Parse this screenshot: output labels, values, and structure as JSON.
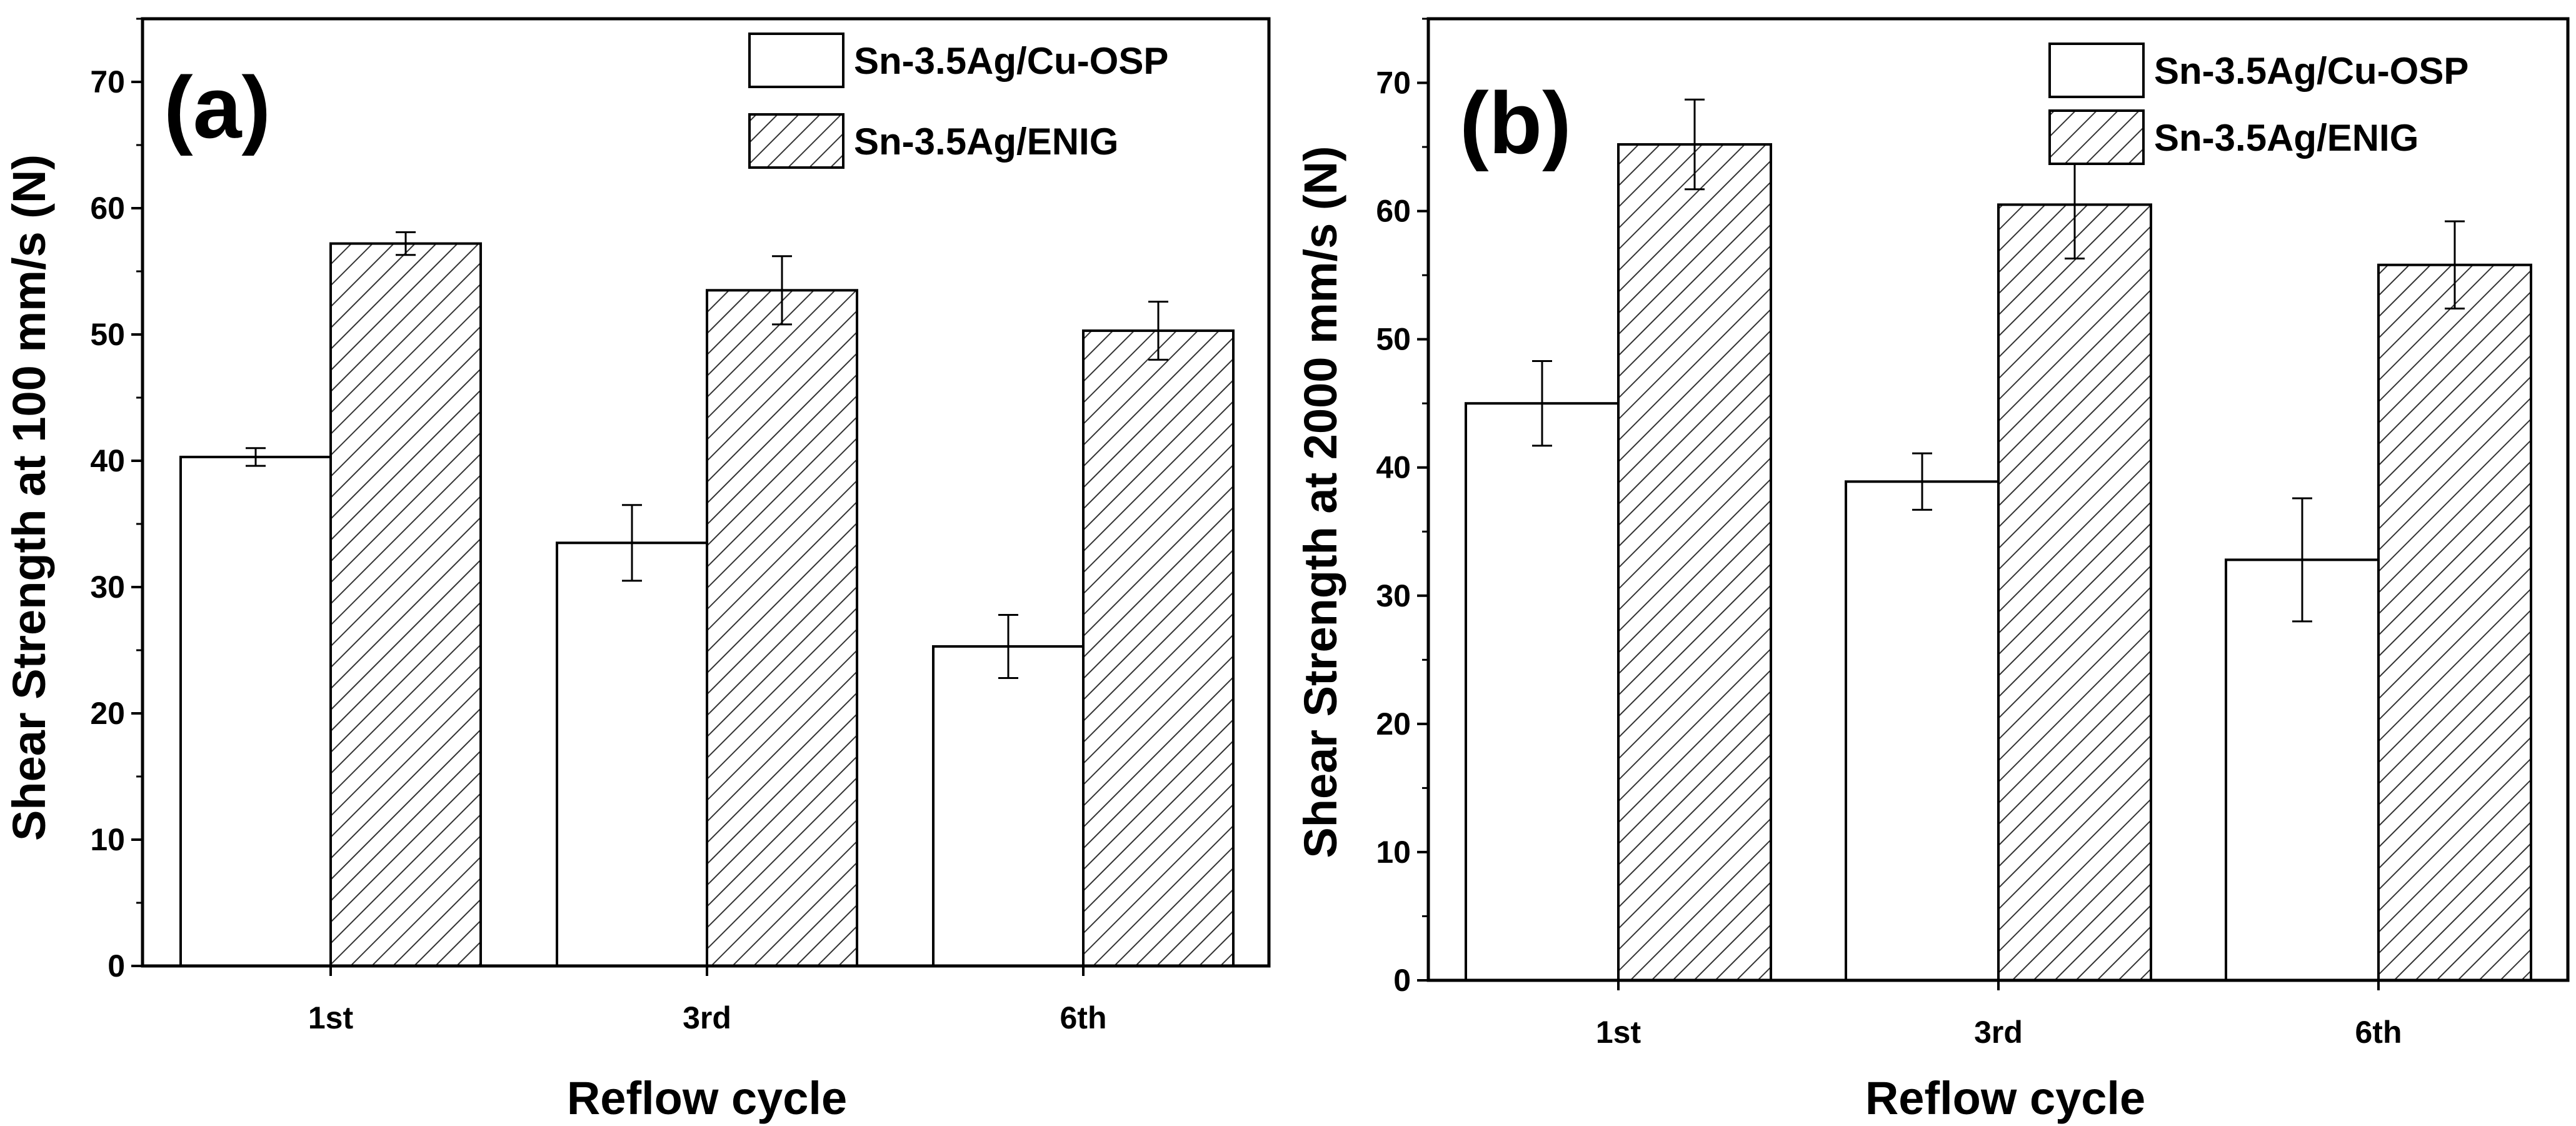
{
  "colors": {
    "axis": "#000000",
    "bar_fill": "#ffffff",
    "hatch": "#333333",
    "background": "#ffffff"
  },
  "chart_data": [
    {
      "type": "bar",
      "panel_label": "(a)",
      "title": "",
      "xlabel": "Reflow cycle",
      "ylabel": "Shear Strength at 100 mm/s (N)",
      "ylim": [
        0,
        75
      ],
      "yticks": [
        0,
        10,
        20,
        30,
        40,
        50,
        60,
        70
      ],
      "categories": [
        "1st",
        "3rd",
        "6th"
      ],
      "legend_position": "top-right",
      "series": [
        {
          "name": "Sn-3.5Ag/Cu-OSP",
          "pattern": "plain",
          "values": [
            40.3,
            33.5,
            25.3
          ],
          "errors": [
            0.7,
            3.0,
            2.5
          ]
        },
        {
          "name": "Sn-3.5Ag/ENIG",
          "pattern": "hatched",
          "values": [
            57.2,
            53.5,
            50.3
          ],
          "errors": [
            0.9,
            2.7,
            2.3
          ]
        }
      ]
    },
    {
      "type": "bar",
      "panel_label": "(b)",
      "title": "",
      "xlabel": "Reflow cycle",
      "ylabel": "Shear Strength at 2000 mm/s (N)",
      "ylim": [
        0,
        75
      ],
      "yticks": [
        0,
        10,
        20,
        30,
        40,
        50,
        60,
        70
      ],
      "categories": [
        "1st",
        "3rd",
        "6th"
      ],
      "legend_position": "top-right",
      "series": [
        {
          "name": "Sn-3.5Ag/Cu-OSP",
          "pattern": "plain",
          "values": [
            45.0,
            38.9,
            32.8
          ],
          "errors": [
            3.3,
            2.2,
            4.8
          ]
        },
        {
          "name": "Sn-3.5Ag/ENIG",
          "pattern": "hatched",
          "values": [
            65.2,
            60.5,
            55.8
          ],
          "errors": [
            3.5,
            4.2,
            3.4
          ]
        }
      ]
    }
  ]
}
